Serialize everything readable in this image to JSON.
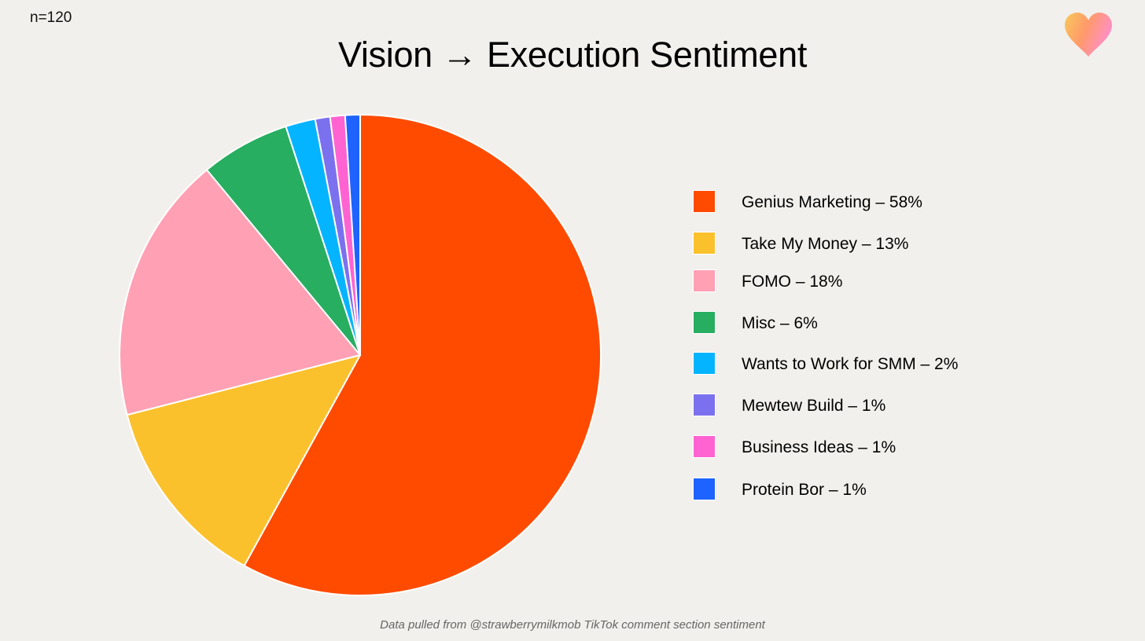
{
  "header": {
    "sample_size": "n=120",
    "title": "Vision → Execution Sentiment"
  },
  "logo": {
    "icon": "heart-icon",
    "gradient": [
      "#f8c95a",
      "#ff9a6a",
      "#ff8fc8"
    ]
  },
  "footnote": "Data pulled from @strawberrymilkmob TikTok comment section sentiment",
  "chart_data": {
    "type": "pie",
    "title": "Vision → Execution Sentiment",
    "start_angle": "12 o'clock, clockwise",
    "legend_position": "right",
    "slices": [
      {
        "label": "Genius Marketing – 58%",
        "value": 58,
        "color": "#ff4b00"
      },
      {
        "label": "Take My Money – 13%",
        "value": 13,
        "color": "#fbc12d"
      },
      {
        "label": "FOMO – 18%",
        "value": 18,
        "color": "#ffa0b4"
      },
      {
        "label": "Misc – 6%",
        "value": 6,
        "color": "#27ae60"
      },
      {
        "label": "Wants to Work for SMM – 2%",
        "value": 2,
        "color": "#05b4ff"
      },
      {
        "label": "Mewtew Build – 1%",
        "value": 1,
        "color": "#7b71ee"
      },
      {
        "label": "Business Ideas – 1%",
        "value": 1,
        "color": "#ff63d2"
      },
      {
        "label": "Protein Bor – 1%",
        "value": 1,
        "color": "#1e63ff"
      }
    ]
  }
}
